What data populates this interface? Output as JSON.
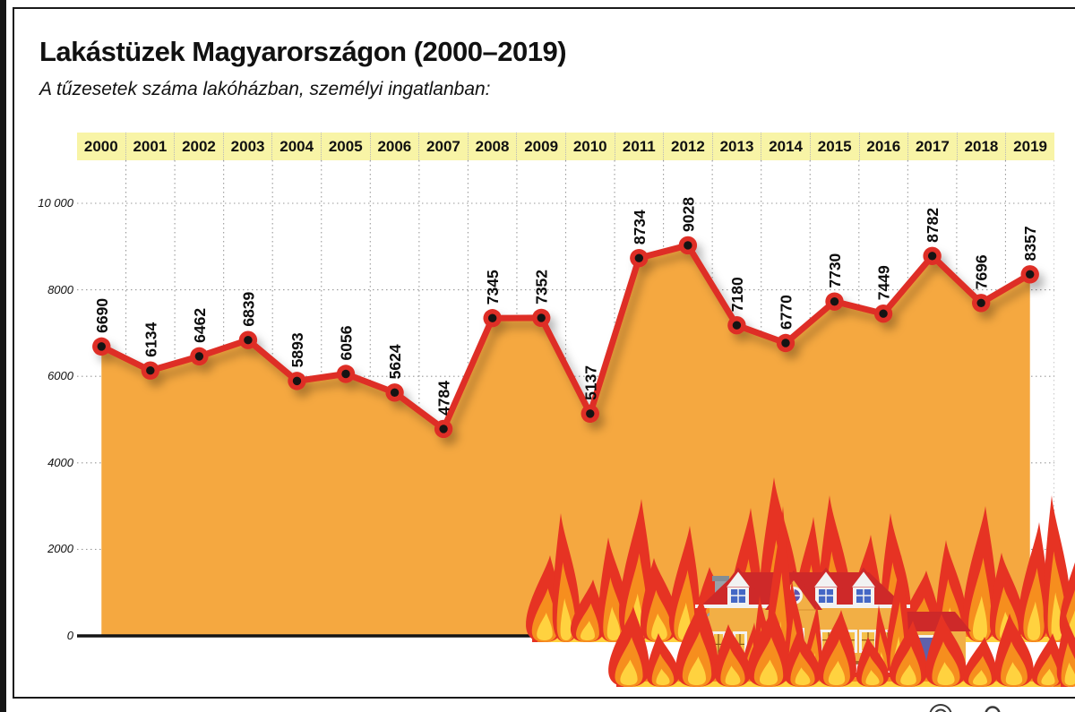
{
  "page": {
    "title": "Lakástüzek Magyarországon (2000–2019)",
    "subtitle": "A tűzesetek száma lakóházban, személyi ingatlanban:"
  },
  "chart_data": {
    "type": "area",
    "title": "Lakástüzek Magyarországon (2000–2019)",
    "subtitle": "A tűzesetek száma lakóházban, személyi ingatlanban:",
    "categories": [
      "2000",
      "2001",
      "2002",
      "2003",
      "2004",
      "2005",
      "2006",
      "2007",
      "2008",
      "2009",
      "2010",
      "2011",
      "2012",
      "2013",
      "2014",
      "2015",
      "2016",
      "2017",
      "2018",
      "2019"
    ],
    "values": [
      6690,
      6134,
      6462,
      6839,
      5893,
      6056,
      5624,
      4784,
      7345,
      7352,
      5137,
      8734,
      9028,
      7180,
      6770,
      7730,
      7449,
      8782,
      7696,
      8357
    ],
    "xlabel": "",
    "ylabel": "",
    "ylim": [
      0,
      10000
    ],
    "yticks": [
      0,
      2000,
      4000,
      6000,
      8000,
      10000
    ],
    "ytick_labels": [
      "0",
      "2000",
      "4000",
      "6000",
      "8000",
      "10 000"
    ],
    "grid": true,
    "point_labels_rotated": true,
    "legend": "none",
    "colors": {
      "area_fill": "#F5A840",
      "line_red": "#DE2E26",
      "point_core": "#141414",
      "year_band_bg": "#F8F4A6",
      "grid": "#9a9a9a",
      "axis": "#141414"
    }
  },
  "illustration": {
    "name": "burning-house",
    "palette": {
      "flame_red": "#E63323",
      "flame_orange": "#F68E1E",
      "flame_yellow": "#FFD23F",
      "house_wall": "#F2AF45",
      "roof_red": "#CE2929",
      "window_blue": "#4467C5",
      "window_pane_yellow": "#F6C14A",
      "garage_door_blue": "#5E61AB",
      "door_maroon": "#7B1518",
      "chimney_gray": "#99A1A8",
      "trim_white": "#F2F2F2"
    }
  }
}
